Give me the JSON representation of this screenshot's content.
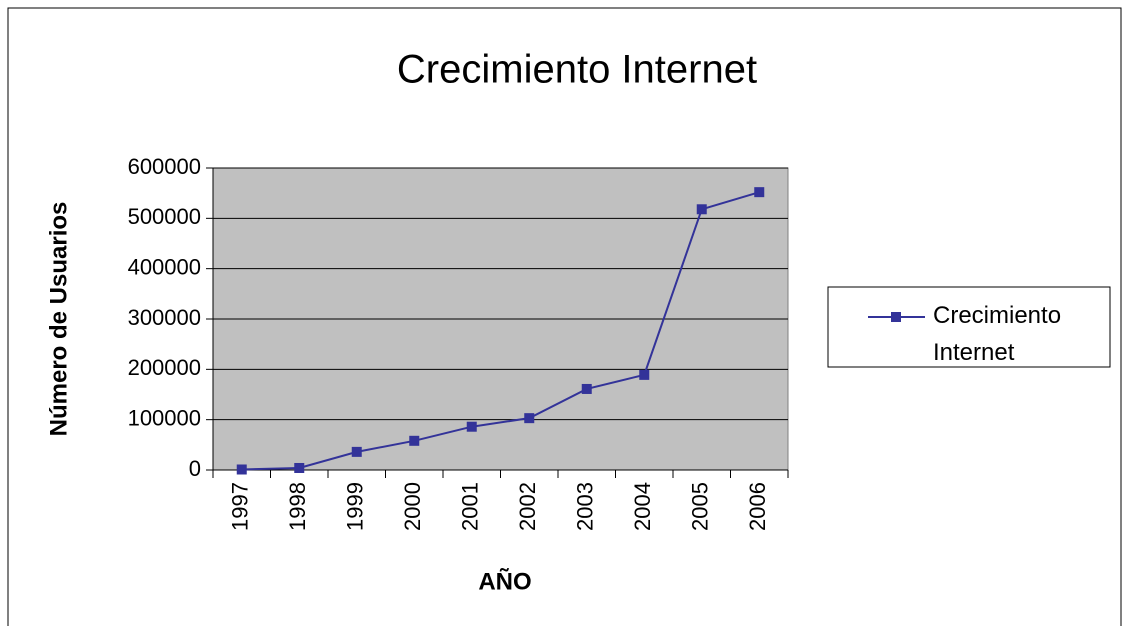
{
  "chart_data": {
    "type": "line",
    "title": "Crecimiento Internet",
    "x_label": "AÑO",
    "y_label": "Número de Usuarios",
    "categories": [
      "1997",
      "1998",
      "1999",
      "2000",
      "2001",
      "2002",
      "2003",
      "2004",
      "2005",
      "2006"
    ],
    "series": [
      {
        "name": "Crecimiento Internet",
        "color": "#333399",
        "values": [
          1000,
          4000,
          36000,
          58000,
          86000,
          103000,
          161000,
          189000,
          518000,
          552000
        ]
      }
    ],
    "ylim": [
      0,
      600000
    ],
    "yticks": [
      0,
      100000,
      200000,
      300000,
      400000,
      500000,
      600000
    ],
    "grid": true,
    "legend": "right"
  }
}
